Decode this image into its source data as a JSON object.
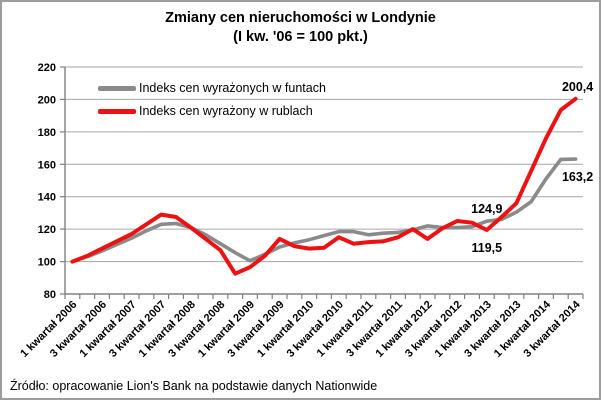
{
  "title": {
    "line1": "Zmiany cen nieruchomości w Londynie",
    "line2": "(I kw. '06 = 100 pkt.)"
  },
  "source": "Źródło: opracowanie Lion's Bank na podstawie danych Nationwide",
  "legend": {
    "items": [
      {
        "label": "Indeks cen wyrażonych w funtach",
        "series": "funty"
      },
      {
        "label": "Indeks cen wyrażony w rublach",
        "series": "ruble"
      }
    ]
  },
  "chart_data": {
    "type": "line",
    "title": "Zmiany cen nieruchomości w Londynie (I kw. '06 = 100 pkt.)",
    "ylim": [
      80,
      220
    ],
    "yticks": [
      80,
      100,
      120,
      140,
      160,
      180,
      200,
      220
    ],
    "grid": true,
    "legend_position": "top-left-inside",
    "categories": [
      "1 kwartał 2006",
      "2 kwartał 2006",
      "3 kwartał 2006",
      "4 kwartał 2006",
      "1 kwartał 2007",
      "2 kwartał 2007",
      "3 kwartał 2007",
      "4 kwartał 2007",
      "1 kwartał 2008",
      "2 kwartał 2008",
      "3 kwartał 2008",
      "4 kwartał 2008",
      "1 kwartał 2009",
      "2 kwartał 2009",
      "3 kwartał 2009",
      "4 kwartał 2009",
      "1 kwartał 2010",
      "2 kwartał 2010",
      "3 kwartał 2010",
      "4 kwartał 2010",
      "1 kwartał 2011",
      "2 kwartał 2011",
      "3 kwartał 2011",
      "4 kwartał 2011",
      "1 kwartał 2012",
      "2 kwartał 2012",
      "3 kwartał 2012",
      "4 kwartał 2012",
      "1 kwartał 2013",
      "2 kwartał 2013",
      "3 kwartał 2013",
      "4 kwartał 2013",
      "1 kwartał 2014",
      "2 kwartał 2014",
      "3 kwartał 2014"
    ],
    "visible_x_tick_labels": [
      "1 kwartał 2006",
      "3 kwartał 2006",
      "1 kwartał 2007",
      "3 kwartał 2007",
      "1 kwartał 2008",
      "3 kwartał 2008",
      "1 kwartał 2009",
      "3 kwartał 2009",
      "1 kwartał 2010",
      "3 kwartał 2010",
      "1 kwartał 2011",
      "3 kwartał 2011",
      "1 kwartał 2012",
      "3 kwartał 2012",
      "1 kwartał 2013",
      "3 kwartał 2013",
      "1 kwartał 2014",
      "3 kwartał 2014"
    ],
    "series": [
      {
        "name": "funty",
        "label": "Indeks cen wyrażonych w funtach",
        "color": "#8a8a8a",
        "values": [
          100,
          103,
          106.5,
          110.5,
          114.5,
          119,
          123,
          123.5,
          121,
          116.5,
          111,
          105.5,
          100.5,
          104.5,
          109,
          111.5,
          113.5,
          116,
          118.5,
          118.5,
          116.5,
          117.5,
          118,
          119.5,
          122,
          121,
          121,
          121.5,
          124.9,
          126,
          130.5,
          137,
          151,
          163,
          163.2
        ]
      },
      {
        "name": "ruble",
        "label": "Indeks cen wyrażony w rublach",
        "color": "#ee1111",
        "values": [
          100,
          103.5,
          108,
          112.5,
          117,
          123,
          129,
          127.5,
          121,
          114,
          107,
          92.5,
          96.5,
          103.5,
          114,
          109.5,
          108,
          108.5,
          115,
          111,
          112,
          112.5,
          115,
          120,
          114,
          120.5,
          125,
          124,
          119.5,
          127.5,
          136,
          156,
          176,
          193.5,
          200.4
        ]
      }
    ],
    "annotations": [
      {
        "text": "124,9",
        "series": "funty",
        "category": "1 kwartał 2013",
        "value": 124.9,
        "position": "above"
      },
      {
        "text": "119,5",
        "series": "ruble",
        "category": "1 kwartał 2013",
        "value": 119.5,
        "position": "below"
      },
      {
        "text": "200,4",
        "series": "ruble",
        "category": "3 kwartał 2014",
        "value": 200.4,
        "position": "above"
      },
      {
        "text": "163,2",
        "series": "funty",
        "category": "3 kwartał 2014",
        "value": 163.2,
        "position": "below"
      }
    ],
    "colors": {
      "grid": "#a6a6a6",
      "axis": "#808080",
      "text": "#000000"
    }
  }
}
